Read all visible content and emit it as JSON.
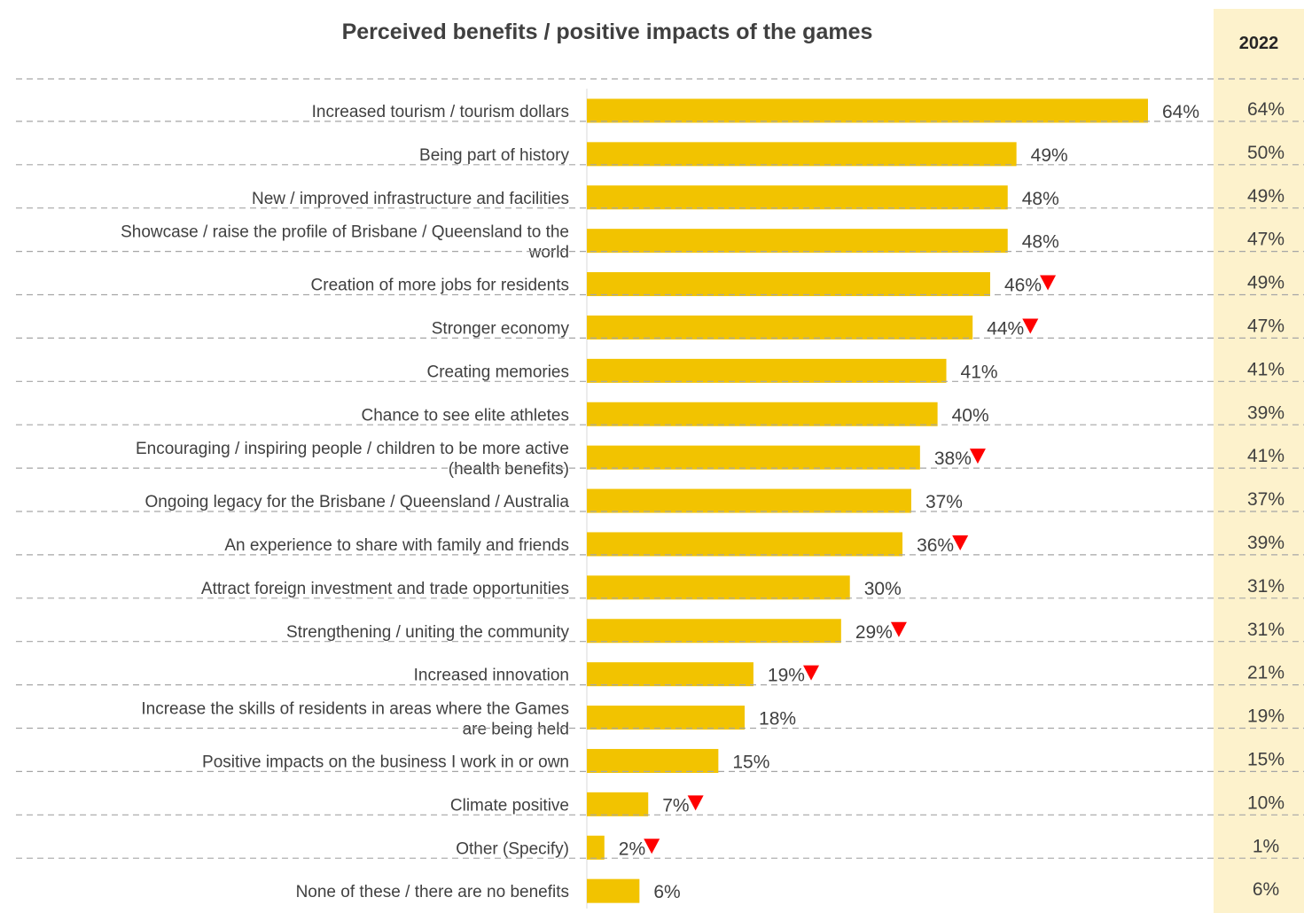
{
  "title": "Perceived benefits / positive impacts of the games",
  "comparison": {
    "header": "2022"
  },
  "colors": {
    "bar": "#f2c300",
    "down_marker": "#ff0000",
    "comparison_bg": "#fdf2cc",
    "text": "#404040",
    "dashed_line": "#a6a6a6"
  },
  "chart_data": {
    "type": "bar",
    "orientation": "horizontal",
    "title": "Perceived benefits / positive impacts of the games",
    "xlim": [
      0,
      64
    ],
    "grid": false,
    "series": [
      {
        "name": "",
        "values": [
          64,
          49,
          48,
          48,
          46,
          44,
          41,
          40,
          38,
          37,
          36,
          30,
          29,
          19,
          18,
          15,
          7,
          2,
          6
        ]
      },
      {
        "name": "2022",
        "values": [
          64,
          50,
          49,
          47,
          49,
          47,
          41,
          39,
          41,
          37,
          39,
          31,
          31,
          21,
          19,
          15,
          10,
          1,
          6
        ]
      }
    ],
    "categories": [
      [
        "Increased tourism / tourism dollars"
      ],
      [
        "Being part of history"
      ],
      [
        "New / improved infrastructure and facilities"
      ],
      [
        "Showcase / raise the profile of Brisbane / Queensland to the",
        "world"
      ],
      [
        "Creation of more jobs for residents"
      ],
      [
        "Stronger economy"
      ],
      [
        "Creating memories"
      ],
      [
        "Chance to see elite athletes"
      ],
      [
        "Encouraging / inspiring people / children to be more active",
        "(health benefits)"
      ],
      [
        "Ongoing legacy for the Brisbane / Queensland / Australia"
      ],
      [
        "An experience to share with family and friends"
      ],
      [
        "Attract foreign investment and trade opportunities"
      ],
      [
        "Strengthening / uniting the community"
      ],
      [
        "Increased innovation"
      ],
      [
        "Increase the skills of residents in areas where the Games",
        "are being held"
      ],
      [
        "Positive impacts on the business I work in or own"
      ],
      [
        "Climate positive"
      ],
      [
        "Other (Specify)"
      ],
      [
        "None of these / there are no benefits"
      ]
    ],
    "value_labels": [
      "64%",
      "49%",
      "48%",
      "48%",
      "46%",
      "44%",
      "41%",
      "40%",
      "38%",
      "37%",
      "36%",
      "30%",
      "29%",
      "19%",
      "18%",
      "15%",
      "7%",
      "2%",
      "6%"
    ],
    "comparison_labels": [
      "64%",
      "50%",
      "49%",
      "47%",
      "49%",
      "47%",
      "41%",
      "39%",
      "41%",
      "37%",
      "39%",
      "31%",
      "31%",
      "21%",
      "19%",
      "15%",
      "10%",
      "1%",
      "6%"
    ],
    "significant_decrease": [
      false,
      false,
      false,
      false,
      true,
      true,
      false,
      false,
      true,
      false,
      true,
      false,
      true,
      true,
      false,
      false,
      true,
      true,
      false
    ]
  }
}
